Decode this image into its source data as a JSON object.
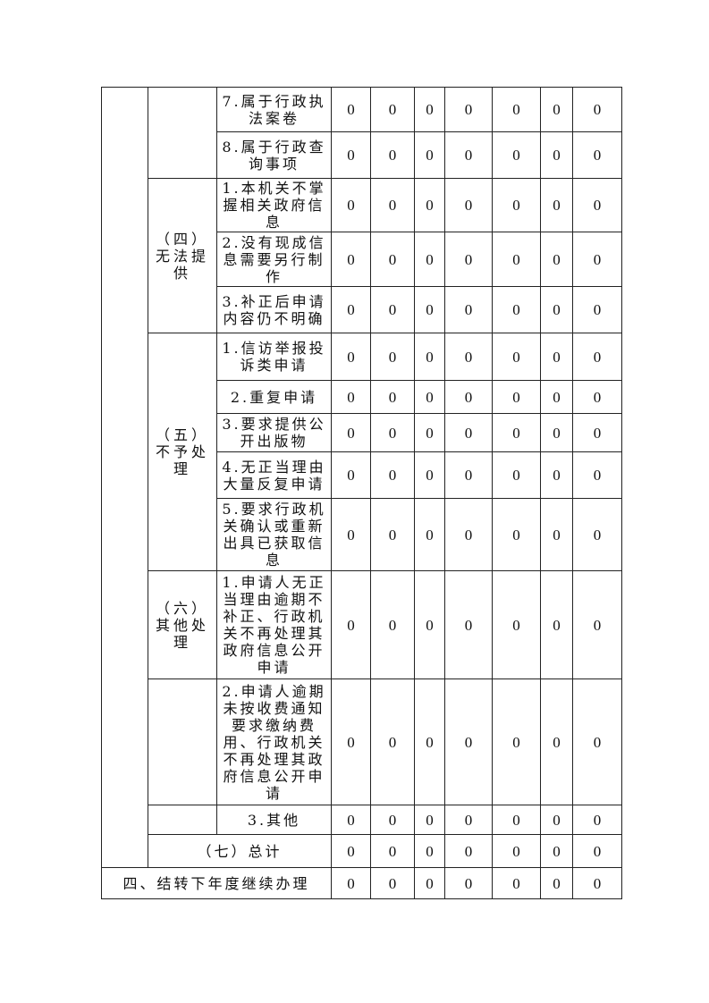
{
  "rows": [
    {
      "group": "",
      "item": "7.属于行政执法案卷",
      "values": [
        0,
        0,
        0,
        0,
        0,
        0,
        0
      ]
    },
    {
      "group": "",
      "item": "8.属于行政查询事项",
      "values": [
        0,
        0,
        0,
        0,
        0,
        0,
        0
      ]
    },
    {
      "group": "（四）无法提供",
      "item": "1.本机关不掌握相关政府信息",
      "values": [
        0,
        0,
        0,
        0,
        0,
        0,
        0
      ]
    },
    {
      "group": "",
      "item": "2.没有现成信息需要另行制作",
      "values": [
        0,
        0,
        0,
        0,
        0,
        0,
        0
      ]
    },
    {
      "group": "",
      "item": "3.补正后申请内容仍不明确",
      "values": [
        0,
        0,
        0,
        0,
        0,
        0,
        0
      ]
    },
    {
      "group": "（五）不予处理",
      "item": "1.信访举报投诉类申请",
      "values": [
        0,
        0,
        0,
        0,
        0,
        0,
        0
      ]
    },
    {
      "group": "",
      "item": "2.重复申请",
      "values": [
        0,
        0,
        0,
        0,
        0,
        0,
        0
      ]
    },
    {
      "group": "",
      "item": "3.要求提供公开出版物",
      "values": [
        0,
        0,
        0,
        0,
        0,
        0,
        0
      ]
    },
    {
      "group": "",
      "item": "4.无正当理由大量反复申请",
      "values": [
        0,
        0,
        0,
        0,
        0,
        0,
        0
      ]
    },
    {
      "group": "",
      "item": "5.要求行政机关确认或重新出具已获取信息",
      "values": [
        0,
        0,
        0,
        0,
        0,
        0,
        0
      ]
    },
    {
      "group": "（六）其他处理",
      "item": "1.申请人无正当理由逾期不补正、行政机关不再处理其政府信息公开申请",
      "values": [
        0,
        0,
        0,
        0,
        0,
        0,
        0
      ]
    },
    {
      "group": "",
      "item": "2.申请人逾期未按收费通知要求缴纳费用、行政机关不再处理其政府信息公开申请",
      "values": [
        0,
        0,
        0,
        0,
        0,
        0,
        0
      ]
    },
    {
      "group": "",
      "item": "3.其他",
      "values": [
        0,
        0,
        0,
        0,
        0,
        0,
        0
      ]
    }
  ],
  "total": {
    "label": "（七）总计",
    "values": [
      0,
      0,
      0,
      0,
      0,
      0,
      0
    ]
  },
  "carryover": {
    "label": "四、结转下年度继续办理",
    "values": [
      0,
      0,
      0,
      0,
      0,
      0,
      0
    ]
  }
}
